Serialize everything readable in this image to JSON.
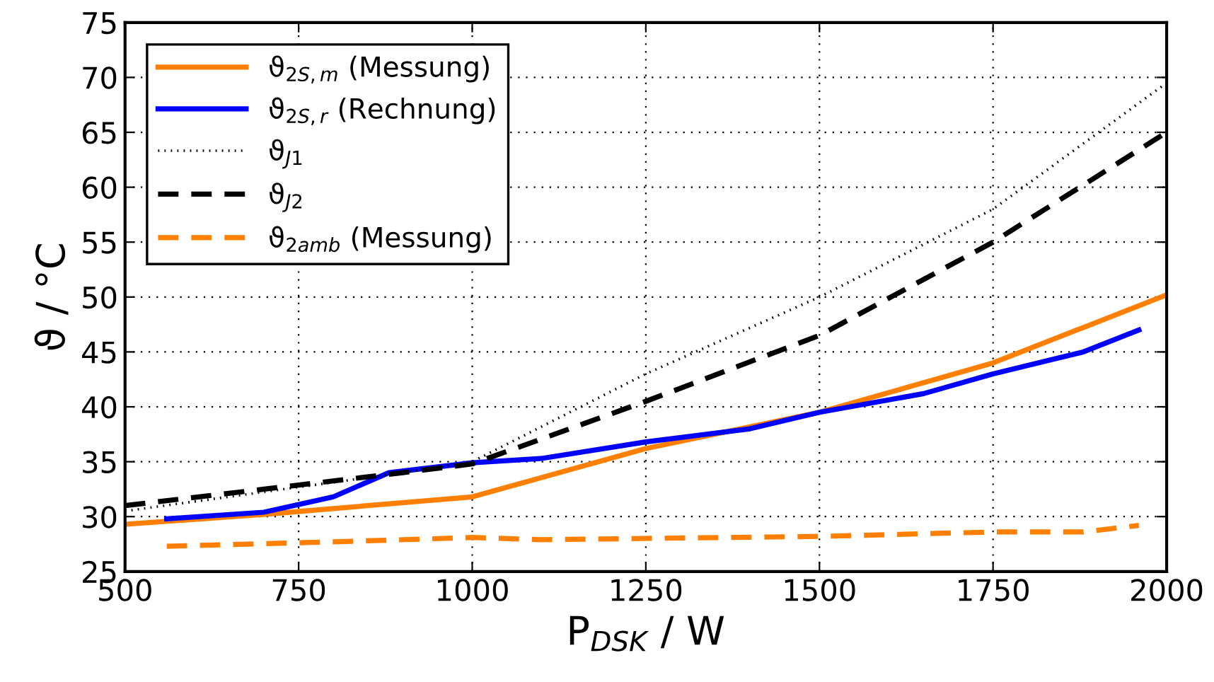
{
  "chart_data": {
    "type": "line",
    "xlabel": "P$_{DSK}$ / W",
    "ylabel": "ϑ / °C",
    "xlim": [
      500,
      2000
    ],
    "ylim": [
      25,
      75
    ],
    "xticks": [
      500,
      750,
      1000,
      1250,
      1500,
      1750,
      2000
    ],
    "yticks": [
      25,
      30,
      35,
      40,
      45,
      50,
      55,
      60,
      65,
      70,
      75
    ],
    "grid": true,
    "legend": "top left",
    "series": [
      {
        "name": "ϑ$_{2S,m}$ (Messung)",
        "color": "#ff8000",
        "line_style": "solid",
        "x": [
          500,
          700,
          1000,
          1250,
          1500,
          1750,
          2000
        ],
        "values": [
          29.3,
          30.2,
          31.8,
          36.2,
          39.5,
          44,
          50.2
        ]
      },
      {
        "name": "ϑ$_{2S,r}$ (Rechnung)",
        "color": "#0000ff",
        "line_style": "solid",
        "x": [
          560,
          700,
          800,
          880,
          1000,
          1100,
          1250,
          1400,
          1500,
          1650,
          1750,
          1880,
          1960
        ],
        "values": [
          29.8,
          30.4,
          31.8,
          34,
          34.9,
          35.3,
          36.8,
          38,
          39.5,
          41.2,
          43,
          45,
          47
        ]
      },
      {
        "name": "ϑ$_{J1}$",
        "color": "#000000",
        "line_style": "dotted",
        "x": [
          500,
          900,
          1000,
          1250,
          1500,
          1750,
          2000
        ],
        "values": [
          30.5,
          34,
          35,
          43,
          50,
          58,
          69.5
        ]
      },
      {
        "name": "ϑ$_{J2}$",
        "color": "#000000",
        "line_style": "dashed",
        "x": [
          500,
          900,
          1000,
          1250,
          1500,
          1750,
          2000
        ],
        "values": [
          31,
          34,
          34.8,
          40.5,
          46.5,
          55,
          65
        ]
      },
      {
        "name": "ϑ$_{2amb}$ (Messung)",
        "color": "#ff8000",
        "line_style": "dashed",
        "x": [
          560,
          800,
          1000,
          1100,
          1500,
          1750,
          1880,
          1960
        ],
        "values": [
          27.3,
          27.7,
          28.1,
          27.9,
          28.2,
          28.6,
          28.6,
          29.2
        ]
      }
    ]
  }
}
